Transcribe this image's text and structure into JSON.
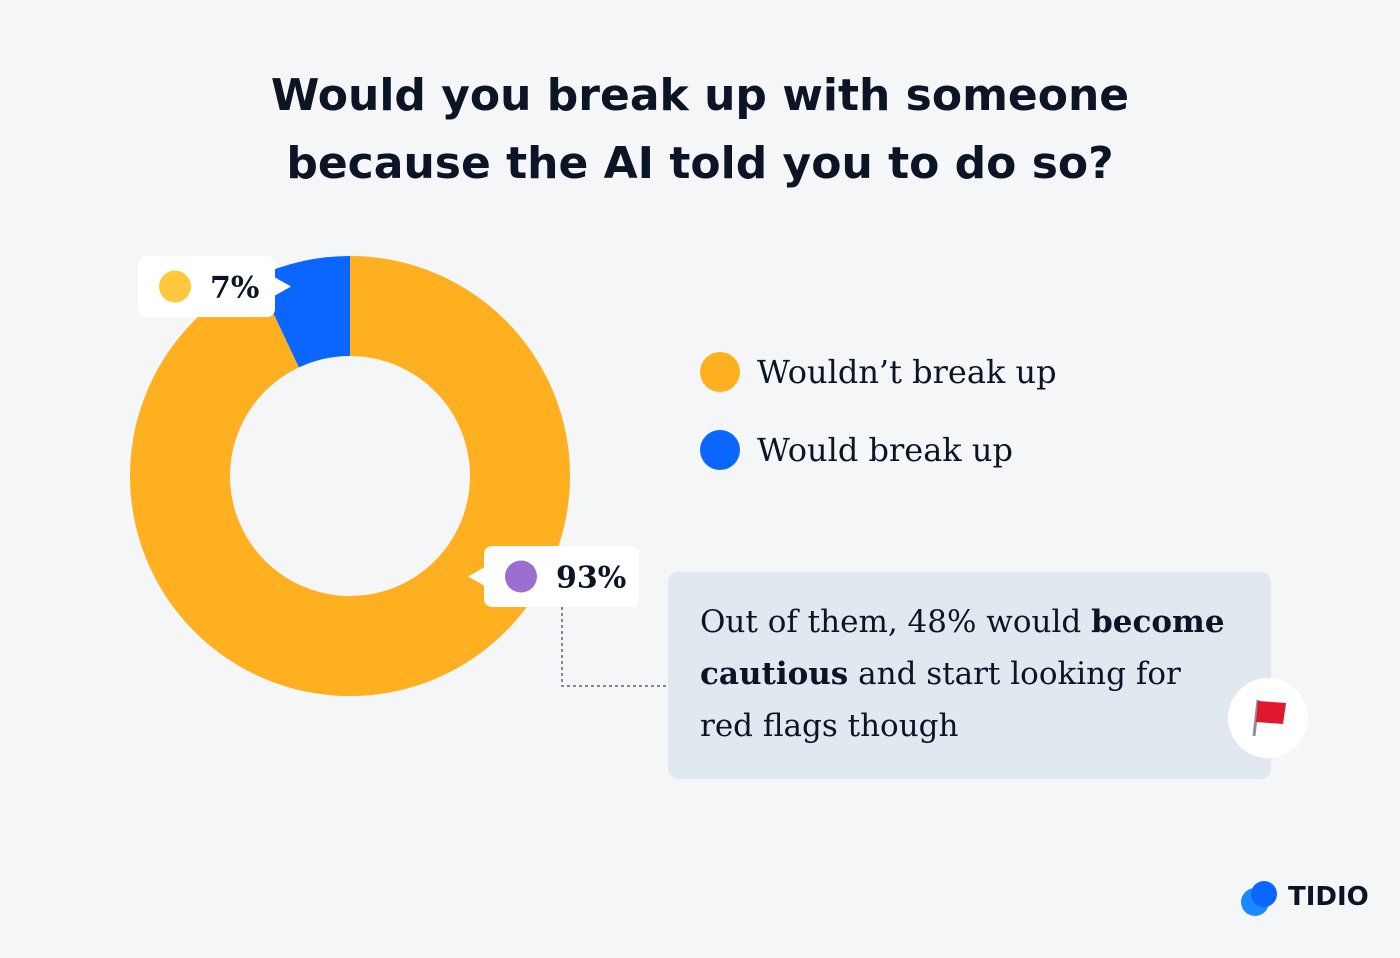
{
  "chart_data": {
    "type": "donut",
    "title": "Would you break up with someone because the AI told you to do so?",
    "categories": [
      "Wouldn’t break up",
      "Would break up"
    ],
    "values": [
      93,
      7
    ],
    "value_labels": [
      "93%",
      "7%"
    ],
    "colors": [
      "#FFB020",
      "#0A66FF"
    ],
    "annotation": [
      "Out of them, 48% would ",
      "become cautious",
      " and start looking for red flags though"
    ],
    "brand": "TIDIO"
  }
}
